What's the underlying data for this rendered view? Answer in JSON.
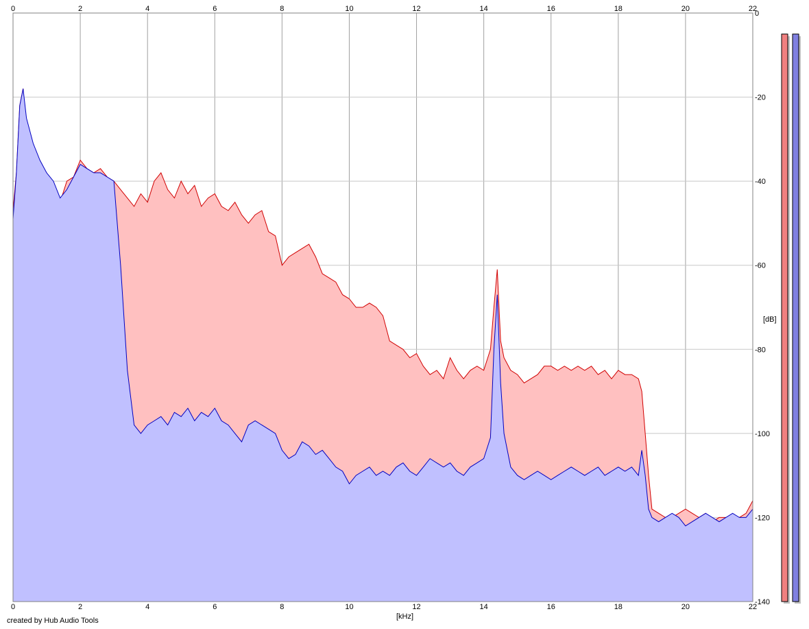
{
  "footer": {
    "credit": "created by Hub Audio Tools"
  },
  "chart_data": {
    "type": "area",
    "xlabel": "[kHz]",
    "ylabel": "[dB]",
    "xlim": [
      0,
      22
    ],
    "ylim": [
      -140,
      0
    ],
    "x_ticks": [
      "0",
      "2",
      "4",
      "6",
      "8",
      "10",
      "12",
      "14",
      "16",
      "18",
      "20",
      "22"
    ],
    "y_ticks": [
      "0",
      "-20",
      "-40",
      "-60",
      "-80",
      "-100",
      "-120",
      "-140"
    ],
    "grid": true,
    "series": [
      {
        "color": "#d00000",
        "fill": "#ffc0c0",
        "x": [
          0,
          0.1,
          0.2,
          0.3,
          0.4,
          0.6,
          0.8,
          1.0,
          1.2,
          1.4,
          1.6,
          1.8,
          2.0,
          2.2,
          2.4,
          2.6,
          2.8,
          3.0,
          3.2,
          3.4,
          3.6,
          3.8,
          4.0,
          4.2,
          4.4,
          4.6,
          4.8,
          5.0,
          5.2,
          5.4,
          5.6,
          5.8,
          6.0,
          6.2,
          6.4,
          6.6,
          6.8,
          7.0,
          7.2,
          7.4,
          7.6,
          7.8,
          8.0,
          8.2,
          8.4,
          8.6,
          8.8,
          9.0,
          9.2,
          9.4,
          9.6,
          9.8,
          10.0,
          10.2,
          10.4,
          10.6,
          10.8,
          11.0,
          11.2,
          11.4,
          11.6,
          11.8,
          12.0,
          12.2,
          12.4,
          12.6,
          12.8,
          13.0,
          13.2,
          13.4,
          13.6,
          13.8,
          14.0,
          14.2,
          14.3,
          14.4,
          14.5,
          14.6,
          14.8,
          15.0,
          15.2,
          15.4,
          15.6,
          15.8,
          16.0,
          16.2,
          16.4,
          16.6,
          16.8,
          17.0,
          17.2,
          17.4,
          17.6,
          17.8,
          18.0,
          18.2,
          18.4,
          18.6,
          18.7,
          18.8,
          18.9,
          19.0,
          19.2,
          19.4,
          19.6,
          19.8,
          20.0,
          20.2,
          20.4,
          20.6,
          20.8,
          21.0,
          21.2,
          21.4,
          21.6,
          21.8,
          22.0
        ],
        "y": [
          -47,
          -38,
          -22,
          -18,
          -28,
          -32,
          -36,
          -38,
          -42,
          -45,
          -40,
          -39,
          -35,
          -37,
          -38,
          -37,
          -39,
          -40,
          -42,
          -44,
          -46,
          -43,
          -45,
          -40,
          -38,
          -42,
          -44,
          -40,
          -43,
          -41,
          -46,
          -44,
          -43,
          -46,
          -47,
          -45,
          -48,
          -50,
          -48,
          -47,
          -52,
          -53,
          -60,
          -58,
          -57,
          -56,
          -55,
          -58,
          -62,
          -63,
          -64,
          -67,
          -68,
          -70,
          -70,
          -69,
          -70,
          -72,
          -78,
          -79,
          -80,
          -82,
          -81,
          -84,
          -86,
          -85,
          -87,
          -82,
          -85,
          -87,
          -85,
          -84,
          -85,
          -80,
          -70,
          -61,
          -78,
          -82,
          -85,
          -86,
          -88,
          -87,
          -86,
          -84,
          -84,
          -85,
          -84,
          -85,
          -84,
          -85,
          -84,
          -86,
          -85,
          -87,
          -85,
          -86,
          -86,
          -87,
          -90,
          -100,
          -110,
          -118,
          -119,
          -120,
          -120,
          -119,
          -118,
          -119,
          -120,
          -119,
          -121,
          -120,
          -120,
          -121,
          -120,
          -119,
          -116
        ]
      },
      {
        "color": "#0000c0",
        "fill": "#c0c0ff",
        "x": [
          0,
          0.1,
          0.2,
          0.3,
          0.4,
          0.6,
          0.8,
          1.0,
          1.2,
          1.4,
          1.6,
          1.8,
          2.0,
          2.2,
          2.4,
          2.6,
          2.8,
          3.0,
          3.2,
          3.4,
          3.6,
          3.8,
          4.0,
          4.2,
          4.4,
          4.6,
          4.8,
          5.0,
          5.2,
          5.4,
          5.6,
          5.8,
          6.0,
          6.2,
          6.4,
          6.6,
          6.8,
          7.0,
          7.2,
          7.4,
          7.6,
          7.8,
          8.0,
          8.2,
          8.4,
          8.6,
          8.8,
          9.0,
          9.2,
          9.4,
          9.6,
          9.8,
          10.0,
          10.2,
          10.4,
          10.6,
          10.8,
          11.0,
          11.2,
          11.4,
          11.6,
          11.8,
          12.0,
          12.2,
          12.4,
          12.6,
          12.8,
          13.0,
          13.2,
          13.4,
          13.6,
          13.8,
          14.0,
          14.2,
          14.3,
          14.4,
          14.5,
          14.6,
          14.8,
          15.0,
          15.2,
          15.4,
          15.6,
          15.8,
          16.0,
          16.2,
          16.4,
          16.6,
          16.8,
          17.0,
          17.2,
          17.4,
          17.6,
          17.8,
          18.0,
          18.2,
          18.4,
          18.6,
          18.7,
          18.8,
          18.9,
          19.0,
          19.2,
          19.4,
          19.6,
          19.8,
          20.0,
          20.2,
          20.4,
          20.6,
          20.8,
          21.0,
          21.2,
          21.4,
          21.6,
          21.8,
          22.0
        ],
        "y": [
          -49,
          -38,
          -22,
          -18,
          -25,
          -31,
          -35,
          -38,
          -40,
          -44,
          -42,
          -39,
          -36,
          -37,
          -38,
          -38,
          -39,
          -40,
          -60,
          -85,
          -98,
          -100,
          -98,
          -97,
          -96,
          -98,
          -95,
          -96,
          -94,
          -97,
          -95,
          -96,
          -94,
          -97,
          -98,
          -100,
          -102,
          -98,
          -97,
          -98,
          -99,
          -100,
          -104,
          -106,
          -105,
          -102,
          -103,
          -105,
          -104,
          -106,
          -108,
          -109,
          -112,
          -110,
          -109,
          -108,
          -110,
          -109,
          -110,
          -108,
          -107,
          -109,
          -110,
          -108,
          -106,
          -107,
          -108,
          -107,
          -109,
          -110,
          -108,
          -107,
          -106,
          -101,
          -80,
          -67,
          -88,
          -100,
          -108,
          -110,
          -111,
          -110,
          -109,
          -110,
          -111,
          -110,
          -109,
          -108,
          -109,
          -110,
          -109,
          -108,
          -110,
          -109,
          -108,
          -109,
          -108,
          -110,
          -104,
          -110,
          -118,
          -120,
          -121,
          -120,
          -119,
          -120,
          -122,
          -121,
          -120,
          -119,
          -120,
          -121,
          -120,
          -119,
          -120,
          -120,
          -118
        ]
      }
    ],
    "level_meters": [
      {
        "color": "#f08080",
        "level_db": -5
      },
      {
        "color": "#8080e0",
        "level_db": -5
      }
    ]
  }
}
